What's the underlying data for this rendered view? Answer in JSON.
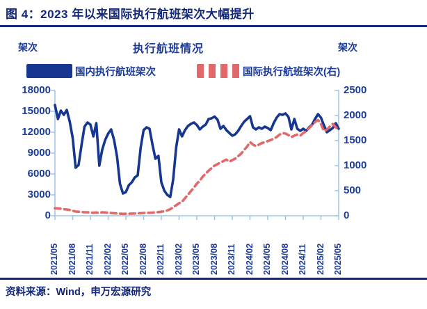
{
  "header": {
    "figure_title": "图 4：2023 年以来国际执行航班架次大幅提升"
  },
  "chart": {
    "title": "执行航班情况",
    "left_unit_label": "架次",
    "right_unit_label": "架次",
    "legend": {
      "domestic_label": "国内执行航班架次",
      "international_label": "国际执行航班架次(右)"
    }
  },
  "footer": {
    "source_text": "资料来源：Wind，申万宏源研究"
  },
  "colors": {
    "navy_text": "#14287B",
    "tick_text": "#1C3C9C",
    "series_domestic": "#16368F",
    "series_international": "#E0696B",
    "axis_line": "#9DC3E6"
  },
  "chart_data": {
    "type": "line",
    "title": "执行航班情况",
    "legend_position": "top",
    "grid": false,
    "sampling": "semi-monthly points, 2021/05 through 2025/05",
    "x_tick_labels": [
      "2021/05",
      "2021/08",
      "2021/11",
      "2022/02",
      "2022/05",
      "2022/08",
      "2022/11",
      "2023/02",
      "2023/05",
      "2023/08",
      "2023/11",
      "2024/02",
      "2024/05",
      "2024/08",
      "2024/11",
      "2025/02",
      "2025/05"
    ],
    "axes": {
      "left": {
        "unit": "架次",
        "min": 0,
        "max": 18000,
        "ticks": [
          0,
          3000,
          6000,
          9000,
          12000,
          15000,
          18000
        ]
      },
      "right": {
        "unit": "架次",
        "min": 0,
        "max": 2500,
        "ticks": [
          0,
          500,
          1000,
          1500,
          2000,
          2500
        ]
      }
    },
    "series": [
      {
        "name": "国内执行航班架次",
        "axis": "left",
        "color": "#16368F",
        "line_style": "solid",
        "values": [
          15900,
          13900,
          15100,
          14500,
          15200,
          13500,
          11200,
          6900,
          7300,
          10200,
          12800,
          13400,
          13100,
          11400,
          13300,
          7200,
          9500,
          10900,
          11800,
          12400,
          10900,
          8500,
          4600,
          3200,
          3400,
          4400,
          4800,
          5500,
          5800,
          9800,
          12300,
          12700,
          12500,
          10200,
          8200,
          8600,
          4800,
          3600,
          3000,
          2700,
          5200,
          9800,
          12400,
          11400,
          12300,
          12900,
          13200,
          13400,
          13050,
          12400,
          12800,
          13100,
          13900,
          14000,
          14250,
          13800,
          12500,
          12900,
          12300,
          11900,
          11500,
          11700,
          12200,
          12900,
          13500,
          13900,
          14300,
          12700,
          12400,
          12700,
          12500,
          12800,
          12600,
          12300,
          13300,
          14100,
          14600,
          14500,
          14700,
          14200,
          12400,
          13900,
          12500,
          12200,
          12500,
          12200,
          12700,
          13100,
          13900,
          14600,
          14100,
          13000,
          12000,
          12300,
          12600,
          13300,
          12500
        ]
      },
      {
        "name": "国际执行航班架次(右)",
        "axis": "right",
        "color": "#E0696B",
        "line_style": "dashed",
        "values": [
          150,
          145,
          140,
          130,
          125,
          115,
          100,
          85,
          80,
          75,
          70,
          70,
          65,
          60,
          65,
          55,
          70,
          65,
          60,
          55,
          50,
          45,
          40,
          38,
          40,
          40,
          42,
          45,
          48,
          50,
          55,
          58,
          60,
          62,
          68,
          72,
          80,
          90,
          105,
          130,
          170,
          210,
          250,
          280,
          350,
          420,
          490,
          560,
          640,
          700,
          780,
          840,
          900,
          950,
          1000,
          1030,
          1060,
          1090,
          1120,
          1080,
          1110,
          1140,
          1190,
          1240,
          1310,
          1380,
          1470,
          1420,
          1390,
          1420,
          1450,
          1470,
          1490,
          1510,
          1540,
          1570,
          1620,
          1650,
          1640,
          1610,
          1570,
          1600,
          1620,
          1600,
          1650,
          1690,
          1750,
          1810,
          1870,
          1910,
          1830,
          1690,
          1720,
          1780,
          1830,
          1770,
          1700
        ]
      }
    ]
  }
}
